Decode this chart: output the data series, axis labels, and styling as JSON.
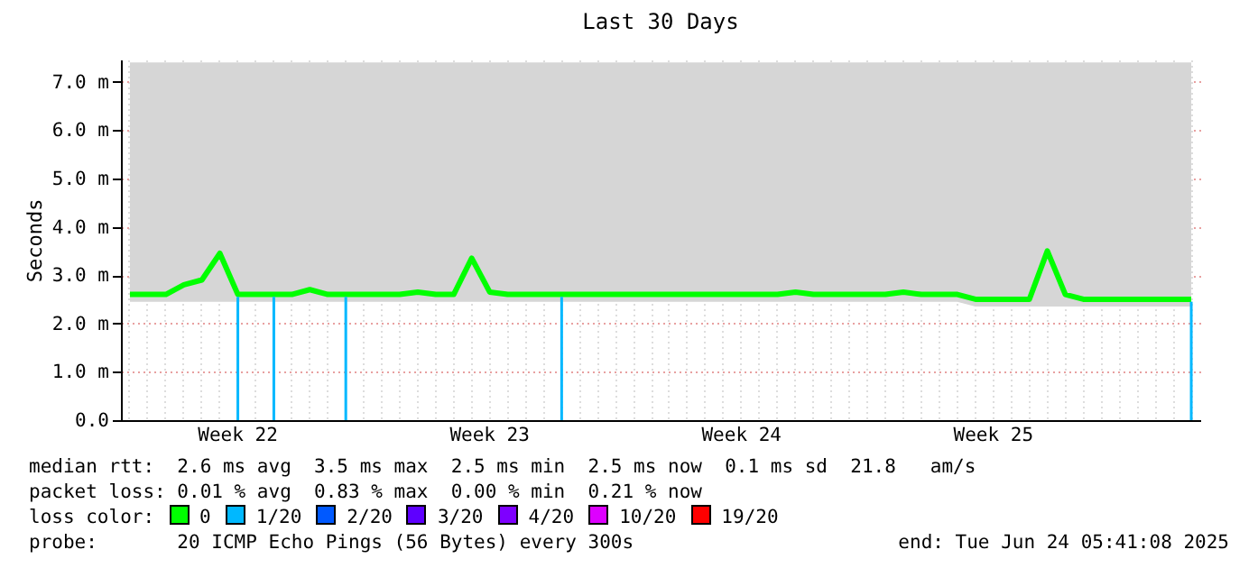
{
  "chart_data": {
    "type": "line",
    "title": "Last 30 Days",
    "ylabel": "Seconds",
    "categories": [
      null,
      null,
      null,
      null,
      null,
      null,
      "Week 22",
      null,
      null,
      null,
      null,
      null,
      null,
      null,
      null,
      null,
      null,
      null,
      null,
      null,
      "Week 23",
      null,
      null,
      null,
      null,
      null,
      null,
      null,
      null,
      null,
      null,
      null,
      null,
      null,
      "Week 24",
      null,
      null,
      null,
      null,
      null,
      null,
      null,
      null,
      null,
      null,
      null,
      null,
      null,
      "Week 25",
      null,
      null,
      null,
      null,
      null,
      null,
      null,
      null,
      null,
      null,
      null
    ],
    "series": [
      {
        "name": "0",
        "color": "#00ff00",
        "values": [
          2.6,
          2.6,
          2.6,
          2.8,
          2.9,
          3.45,
          2.6,
          2.6,
          2.6,
          2.6,
          2.7,
          2.6,
          2.6,
          2.6,
          2.6,
          2.6,
          2.65,
          2.6,
          2.6,
          3.35,
          2.65,
          2.6,
          2.6,
          2.6,
          2.6,
          2.6,
          2.6,
          2.6,
          2.6,
          2.6,
          2.6,
          2.6,
          2.6,
          2.6,
          2.6,
          2.6,
          2.6,
          2.65,
          2.6,
          2.6,
          2.6,
          2.6,
          2.6,
          2.65,
          2.6,
          2.6,
          2.6,
          2.5,
          2.5,
          2.5,
          2.5,
          3.5,
          2.6,
          2.5,
          2.5,
          2.5,
          2.5,
          2.5,
          2.5,
          2.5
        ],
        "lower": [
          2.45,
          2.45,
          2.45,
          2.45,
          2.45,
          2.45,
          2.45,
          2.45,
          2.45,
          2.45,
          2.45,
          2.45,
          2.45,
          2.45,
          2.45,
          2.45,
          2.45,
          2.45,
          2.45,
          2.45,
          2.45,
          2.45,
          2.45,
          2.45,
          2.45,
          2.45,
          2.45,
          2.45,
          2.45,
          2.45,
          2.45,
          2.45,
          2.45,
          2.45,
          2.45,
          2.45,
          2.45,
          2.45,
          2.45,
          2.45,
          2.45,
          2.45,
          2.45,
          2.45,
          2.45,
          2.45,
          2.45,
          2.35,
          2.35,
          2.35,
          2.35,
          2.35,
          2.35,
          2.35,
          2.35,
          2.35,
          2.35,
          2.35,
          2.35,
          2.35
        ],
        "upper": [
          7.4,
          7.4,
          7.4,
          7.4,
          7.4,
          7.4,
          7.4,
          7.4,
          7.4,
          7.4,
          7.4,
          7.4,
          7.4,
          7.4,
          7.4,
          7.4,
          7.4,
          7.4,
          7.4,
          7.4,
          7.4,
          7.4,
          7.4,
          7.4,
          7.4,
          7.4,
          7.4,
          7.4,
          7.4,
          7.4,
          7.4,
          7.4,
          7.4,
          7.4,
          7.4,
          7.4,
          7.4,
          7.4,
          7.4,
          7.4,
          7.4,
          7.4,
          7.4,
          7.4,
          7.4,
          7.4,
          7.4,
          7.4,
          7.4,
          7.4,
          7.4,
          7.4,
          7.4,
          7.4,
          7.4,
          7.4,
          7.4,
          7.4,
          7.4,
          7.4
        ]
      },
      {
        "name": "1/20",
        "color": "#00b8ff",
        "type": "bar",
        "values": [
          null,
          null,
          null,
          null,
          null,
          null,
          2.55,
          null,
          2.55,
          null,
          null,
          null,
          2.55,
          null,
          null,
          null,
          null,
          null,
          null,
          null,
          null,
          null,
          null,
          null,
          2.55,
          null,
          null,
          null,
          null,
          null,
          null,
          null,
          null,
          null,
          null,
          null,
          null,
          null,
          null,
          null,
          null,
          null,
          null,
          null,
          null,
          null,
          null,
          null,
          null,
          null,
          null,
          null,
          null,
          null,
          null,
          null,
          null,
          null,
          null,
          2.45
        ]
      },
      {
        "name": "2/20",
        "color": "#0059ff",
        "type": "bar",
        "values": [
          null,
          null,
          null,
          null,
          null,
          null,
          null,
          null,
          null,
          null,
          null,
          null,
          null,
          null,
          null,
          null,
          null,
          null,
          null,
          null,
          null,
          null,
          null,
          null,
          null,
          null,
          null,
          null,
          null,
          null,
          null,
          null,
          null,
          null,
          null,
          null,
          null,
          null,
          null,
          null,
          null,
          null,
          null,
          null,
          null,
          null,
          null,
          null,
          null,
          null,
          null,
          null,
          null,
          null,
          null,
          null,
          null,
          null,
          null,
          null
        ]
      },
      {
        "name": "3/20",
        "color": "#5e00ff",
        "type": "bar",
        "values": [
          null,
          null,
          null,
          null,
          null,
          null,
          null,
          null,
          null,
          null,
          null,
          null,
          null,
          null,
          null,
          null,
          null,
          null,
          null,
          null,
          null,
          null,
          null,
          null,
          null,
          null,
          null,
          null,
          null,
          null,
          null,
          null,
          null,
          null,
          null,
          null,
          null,
          null,
          null,
          null,
          null,
          null,
          null,
          null,
          null,
          null,
          null,
          null,
          null,
          null,
          null,
          null,
          null,
          null,
          null,
          null,
          null,
          null,
          null,
          null
        ]
      },
      {
        "name": "4/20",
        "color": "#7e00ff",
        "type": "bar",
        "values": [
          null,
          null,
          null,
          null,
          null,
          null,
          null,
          null,
          null,
          null,
          null,
          null,
          null,
          null,
          null,
          null,
          null,
          null,
          null,
          null,
          null,
          null,
          null,
          null,
          null,
          null,
          null,
          null,
          null,
          null,
          null,
          null,
          null,
          null,
          null,
          null,
          null,
          null,
          null,
          null,
          null,
          null,
          null,
          null,
          null,
          null,
          null,
          null,
          null,
          null,
          null,
          null,
          null,
          null,
          null,
          null,
          null,
          null,
          null,
          null
        ]
      },
      {
        "name": "10/20",
        "color": "#dd00ff",
        "type": "bar",
        "values": [
          null,
          null,
          null,
          null,
          null,
          null,
          null,
          null,
          null,
          null,
          null,
          null,
          null,
          null,
          null,
          null,
          null,
          null,
          null,
          null,
          null,
          null,
          null,
          null,
          null,
          null,
          null,
          null,
          null,
          null,
          null,
          null,
          null,
          null,
          null,
          null,
          null,
          null,
          null,
          null,
          null,
          null,
          null,
          null,
          null,
          null,
          null,
          null,
          null,
          null,
          null,
          null,
          null,
          null,
          null,
          null,
          null,
          null,
          null,
          null
        ]
      },
      {
        "name": "19/20",
        "color": "#ff0000",
        "type": "bar",
        "values": [
          null,
          null,
          null,
          null,
          null,
          null,
          null,
          null,
          null,
          null,
          null,
          null,
          null,
          null,
          null,
          null,
          null,
          null,
          null,
          null,
          null,
          null,
          null,
          null,
          null,
          null,
          null,
          null,
          null,
          null,
          null,
          null,
          null,
          null,
          null,
          null,
          null,
          null,
          null,
          null,
          null,
          null,
          null,
          null,
          null,
          null,
          null,
          null,
          null,
          null,
          null,
          null,
          null,
          null,
          null,
          null,
          null,
          null,
          null,
          null
        ]
      }
    ],
    "ylim": [
      0,
      7.46
    ],
    "yticks": [
      {
        "value": 0,
        "label": "0.0"
      },
      {
        "value": 1,
        "label": "1.0 m"
      },
      {
        "value": 2,
        "label": "2.0 m"
      },
      {
        "value": 3,
        "label": "3.0 m"
      },
      {
        "value": 4,
        "label": "4.0 m"
      },
      {
        "value": 5,
        "label": "5.0 m"
      },
      {
        "value": 6,
        "label": "6.0 m"
      },
      {
        "value": 7,
        "label": "7.0 m"
      }
    ],
    "grid": true,
    "legend": "bottom",
    "annotations": [
      "median rtt:  2.6 ms avg  3.5 ms max  2.5 ms min  2.5 ms now  0.1 ms sd  21.8   am/s",
      "packet loss: 0.01 % avg  0.83 % max  0.00 % min  0.21 % now",
      "loss color:",
      "probe:       20 ICMP Echo Pings (56 Bytes) every 300s",
      "end: Tue Jun 24 05:41:08 2025"
    ]
  }
}
